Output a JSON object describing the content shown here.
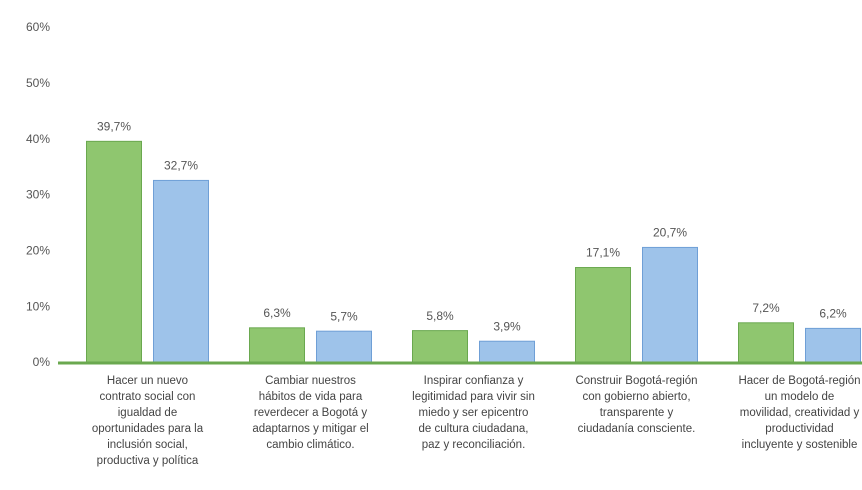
{
  "chart_data": {
    "type": "bar",
    "categories": [
      "Hacer un nuevo\ncontrato social con\nigualdad de\noportunidades para la\ninclusión social,\nproductiva y política",
      "Cambiar nuestros\nhábitos de vida para\nreverdecer a Bogotá y\nadaptarnos y mitigar el\ncambio climático.",
      "Inspirar confianza y\nlegitimidad para vivir sin\nmiedo y ser epicentro\nde cultura ciudadana,\npaz y reconciliación.",
      "Construir Bogotá-región\ncon gobierno abierto,\ntransparente y\nciudadanía consciente.",
      "Hacer de Bogotá-región\nun modelo de\nmovilidad, creatividad y\nproductividad\nincluyente y sostenible"
    ],
    "series": [
      {
        "color": "#8fc66f",
        "values": [
          39.7,
          6.3,
          5.8,
          17.1,
          7.2
        ],
        "value_labels": [
          "39,7%",
          "6,3%",
          "5,8%",
          "17,1%",
          "7,2%"
        ]
      },
      {
        "color": "#9ec3ea",
        "values": [
          32.7,
          5.7,
          3.9,
          20.7,
          6.2
        ],
        "value_labels": [
          "32,7%",
          "5,7%",
          "3,9%",
          "20,7%",
          "6,2%"
        ]
      }
    ],
    "ylim": [
      0,
      60
    ],
    "yticks": [
      {
        "value": 0,
        "label": "0%"
      },
      {
        "value": 10,
        "label": "10%"
      },
      {
        "value": 20,
        "label": "20%"
      },
      {
        "value": 30,
        "label": "30%"
      },
      {
        "value": 40,
        "label": "40%"
      },
      {
        "value": 50,
        "label": "50%"
      },
      {
        "value": 60,
        "label": "60%"
      }
    ]
  }
}
